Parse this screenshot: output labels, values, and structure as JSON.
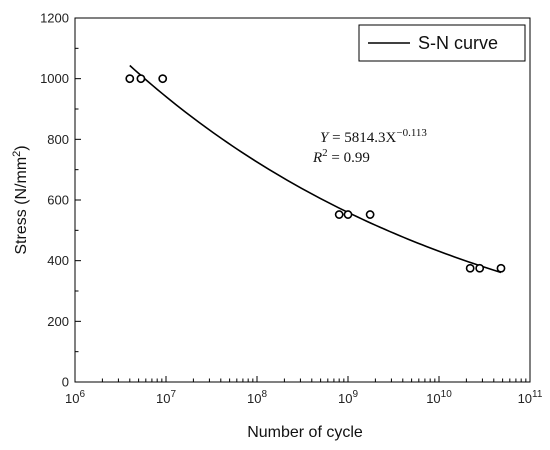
{
  "chart_data": {
    "type": "scatter",
    "title": "",
    "xlabel": "Number of cycle",
    "ylabel_main": "Stress (N/mm",
    "ylabel_sup": "2",
    "ylabel_end": ")",
    "x_scale": "log",
    "xlim": [
      1000000,
      100000000000
    ],
    "ylim": [
      0,
      1200
    ],
    "x_ticks": [
      {
        "value": 1000000,
        "base": "10",
        "exp": "6"
      },
      {
        "value": 10000000,
        "base": "10",
        "exp": "7"
      },
      {
        "value": 100000000,
        "base": "10",
        "exp": "8"
      },
      {
        "value": 1000000000,
        "base": "10",
        "exp": "9"
      },
      {
        "value": 10000000000,
        "base": "10",
        "exp": "10"
      },
      {
        "value": 100000000000,
        "base": "10",
        "exp": "11"
      }
    ],
    "y_ticks": [
      "0",
      "200",
      "400",
      "600",
      "800",
      "1000",
      "1200"
    ],
    "grid": false,
    "points": [
      {
        "x": 4000000,
        "y": 1000
      },
      {
        "x": 5300000,
        "y": 1000
      },
      {
        "x": 9200000,
        "y": 1000
      },
      {
        "x": 800000000,
        "y": 552
      },
      {
        "x": 1000000000,
        "y": 552
      },
      {
        "x": 1750000000,
        "y": 552
      },
      {
        "x": 22000000000,
        "y": 375
      },
      {
        "x": 28000000000,
        "y": 375
      },
      {
        "x": 48000000000,
        "y": 375
      }
    ],
    "fit": {
      "name": "S-N curve",
      "coefficient": 5814.3,
      "exponent": -0.113,
      "x_range": [
        4000000,
        48000000000
      ]
    },
    "legend": {
      "position": "top-right",
      "entries": [
        "S-N curve"
      ]
    },
    "annotation": {
      "eq_lhs": "Y",
      "eq_mid": " = 5814.3X",
      "eq_sup": "−0.113",
      "r2_lhs": "R",
      "r2_sup": "2",
      "r2_rhs": " = 0.99"
    },
    "colors": {
      "line": "#000000",
      "marker": "#000000",
      "axis": "#000000"
    }
  }
}
